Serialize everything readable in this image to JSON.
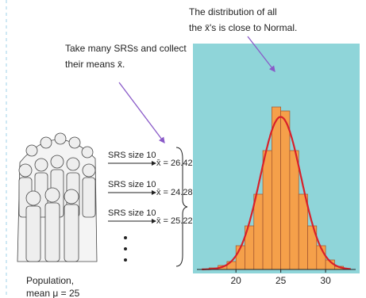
{
  "annotations": {
    "normal_note": [
      "The distribution of all",
      "the x̄'s is close to Normal."
    ],
    "srs_note": [
      "Take many SRSs and collect",
      "their means x̄."
    ],
    "samples": [
      {
        "label": "SRS size 10",
        "mean": "x̄ = 26.42"
      },
      {
        "label": "SRS size 10",
        "mean": "x̄ = 24.28"
      },
      {
        "label": "SRS size 10",
        "mean": "x̄ = 25.22"
      }
    ],
    "population": [
      "Population,",
      "mean μ = 25"
    ]
  },
  "chart_data": {
    "type": "histogram",
    "bins": [
      17,
      18,
      19,
      20,
      21,
      22,
      23,
      24,
      25,
      26,
      27,
      28,
      29,
      30,
      31,
      32
    ],
    "values": [
      2,
      5,
      10,
      30,
      55,
      95,
      150,
      205,
      200,
      150,
      95,
      55,
      30,
      12,
      4
    ],
    "color": "#f5a04a",
    "curve_color": "#d8202a",
    "background": "#8fd5d9",
    "xlim": [
      15.2,
      33.8
    ],
    "xticks": [
      20,
      25,
      30
    ],
    "ylim": [
      0,
      260
    ]
  }
}
